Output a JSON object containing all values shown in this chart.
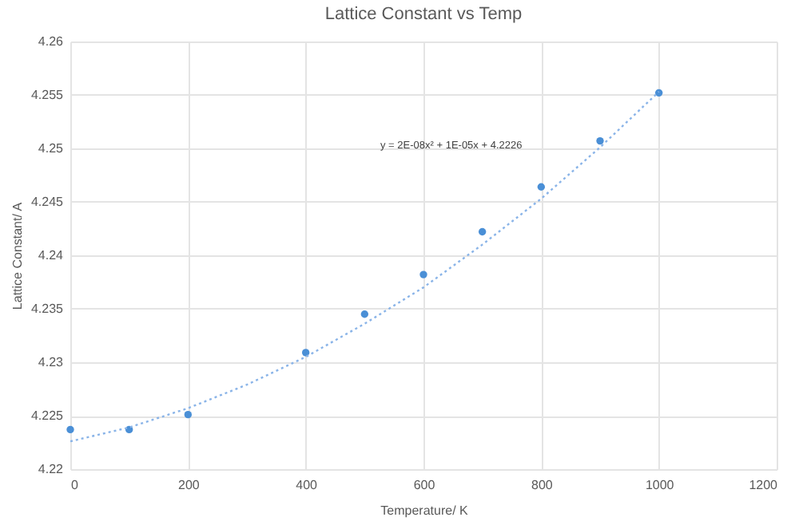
{
  "chart_data": {
    "type": "scatter",
    "title": "Lattice Constant vs Temp",
    "xlabel": "Temperature/ K",
    "ylabel": "Lattice Constant/ A",
    "xlim": [
      0,
      1200
    ],
    "xticks": [
      0,
      200,
      400,
      600,
      800,
      1000,
      1200
    ],
    "ylim": [
      4.22,
      4.26
    ],
    "yticks": [
      4.22,
      4.225,
      4.23,
      4.235,
      4.24,
      4.245,
      4.25,
      4.255,
      4.26
    ],
    "grid": true,
    "annotations": [
      "y = 2E-08x² + 1E-05x + 4.2226"
    ],
    "series": [
      {
        "color": "#4a8fd6",
        "marker": "circle",
        "x": [
          0,
          100,
          200,
          400,
          500,
          600,
          700,
          800,
          900,
          1000
        ],
        "values": [
          4.2237,
          4.2237,
          4.2251,
          4.2309,
          4.2345,
          4.2382,
          4.2422,
          4.2464,
          4.2507,
          4.2552
        ]
      },
      {
        "type": "line",
        "color": "#8ab4e8",
        "marker": "none",
        "line_style": "dotted",
        "x": [
          0,
          100,
          200,
          300,
          400,
          500,
          600,
          700,
          800,
          900,
          1000
        ],
        "values": [
          4.2226,
          4.2239,
          4.2257,
          4.2279,
          4.2305,
          4.2336,
          4.237,
          4.241,
          4.2453,
          4.2501,
          4.2553
        ]
      }
    ]
  }
}
